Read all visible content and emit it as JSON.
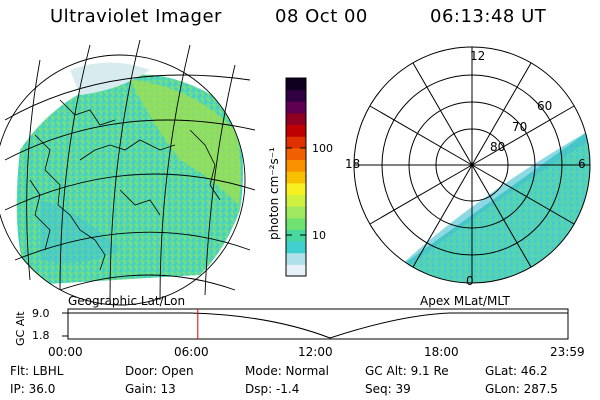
{
  "header": {
    "instrument": "Ultraviolet Imager",
    "date": "08 Oct 00",
    "time": "06:13:48 UT"
  },
  "panels": {
    "left_label": "Geographic Lat/Lon",
    "right_label": "Apex MLat/MLT"
  },
  "polar_plot": {
    "mlt_labels": [
      "12",
      "18",
      "6",
      "0"
    ],
    "lat_labels": [
      "60",
      "70",
      "80"
    ]
  },
  "colorbar": {
    "unit_label": "photon cm⁻²s⁻¹",
    "tick_labels": [
      "100",
      "10"
    ],
    "colors": [
      "#e8f0f8",
      "#b0e0e8",
      "#40d0d0",
      "#48d8a0",
      "#70e070",
      "#a0e860",
      "#d0f040",
      "#f8f020",
      "#f8c000",
      "#f89000",
      "#f06000",
      "#e03000",
      "#c00000",
      "#900020",
      "#600050",
      "#300040",
      "#100020"
    ]
  },
  "timeline": {
    "axis_label": "GC Alt",
    "y_ticks": [
      "9.0",
      "1.8"
    ],
    "x_ticks": [
      "00:00",
      "06:00",
      "12:00",
      "18:00",
      "23:59"
    ],
    "marker_time_hours": 6.23
  },
  "info": {
    "row1": {
      "filter": "Flt: LBHL",
      "door": "Door: Open",
      "mode": "Mode: Normal",
      "gc_alt": "GC Alt: 9.1 Re",
      "glat": "GLat:  46.2"
    },
    "row2": {
      "ip": "IP: 36.0",
      "gain": "Gain: 13",
      "dsp": "Dsp:   -1.4",
      "seq": "Seq: 39",
      "glon": "GLon: 287.5"
    }
  }
}
